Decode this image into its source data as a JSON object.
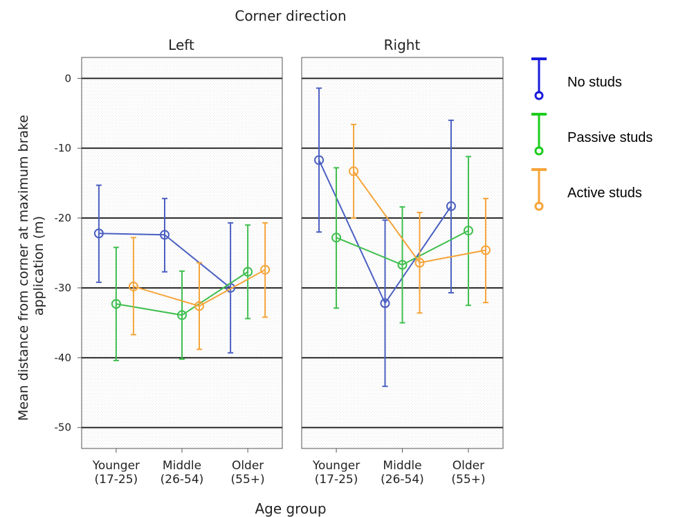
{
  "chart_data": {
    "type": "line",
    "title": "Corner direction",
    "xlabel": "Age group",
    "ylabel": "Mean distance from corner at maximum brake application (m)",
    "ylim": [
      -53,
      3
    ],
    "yticks": [
      0,
      -10,
      -20,
      -30,
      -40,
      -50
    ],
    "grid": "horizontal",
    "legend_position": "right",
    "categories": [
      {
        "line1": "Younger",
        "line2": "(17-25)"
      },
      {
        "line1": "Middle",
        "line2": "(26-54)"
      },
      {
        "line1": "Older",
        "line2": "(55+)"
      }
    ],
    "panels": [
      {
        "name": "Left",
        "series": [
          {
            "name": "No studs",
            "color": "#4a5fc1",
            "values": [
              -22.2,
              -22.4,
              -30.0
            ],
            "lower": [
              -29.2,
              -27.7,
              -39.3
            ],
            "upper": [
              -15.3,
              -17.2,
              -20.7
            ]
          },
          {
            "name": "Passive studs",
            "color": "#3fbe4e",
            "values": [
              -32.3,
              -33.9,
              -27.7
            ],
            "lower": [
              -40.4,
              -40.2,
              -34.4
            ],
            "upper": [
              -24.2,
              -27.6,
              -21.0
            ]
          },
          {
            "name": "Active studs",
            "color": "#f5a43a",
            "values": [
              -29.8,
              -32.6,
              -27.4
            ],
            "lower": [
              -36.7,
              -38.8,
              -34.2
            ],
            "upper": [
              -22.8,
              -26.4,
              -20.7
            ]
          }
        ]
      },
      {
        "name": "Right",
        "series": [
          {
            "name": "No studs",
            "color": "#4a5fc1",
            "values": [
              -11.7,
              -32.2,
              -18.3
            ],
            "lower": [
              -22.0,
              -44.1,
              -30.7
            ],
            "upper": [
              -1.4,
              -20.3,
              -6.0
            ]
          },
          {
            "name": "Passive studs",
            "color": "#3fbe4e",
            "values": [
              -22.8,
              -26.7,
              -21.8
            ],
            "lower": [
              -32.9,
              -35.0,
              -32.5
            ],
            "upper": [
              -12.8,
              -18.4,
              -11.2
            ]
          },
          {
            "name": "Active studs",
            "color": "#f5a43a",
            "values": [
              -13.3,
              -26.4,
              -24.6
            ],
            "lower": [
              -20.0,
              -33.6,
              -32.1
            ],
            "upper": [
              -6.6,
              -19.2,
              -17.2
            ]
          }
        ]
      }
    ],
    "legend": [
      {
        "name": "No studs",
        "color": "#1a1adb"
      },
      {
        "name": "Passive studs",
        "color": "#1dcc1d"
      },
      {
        "name": "Active studs",
        "color": "#f5a43a"
      }
    ]
  }
}
